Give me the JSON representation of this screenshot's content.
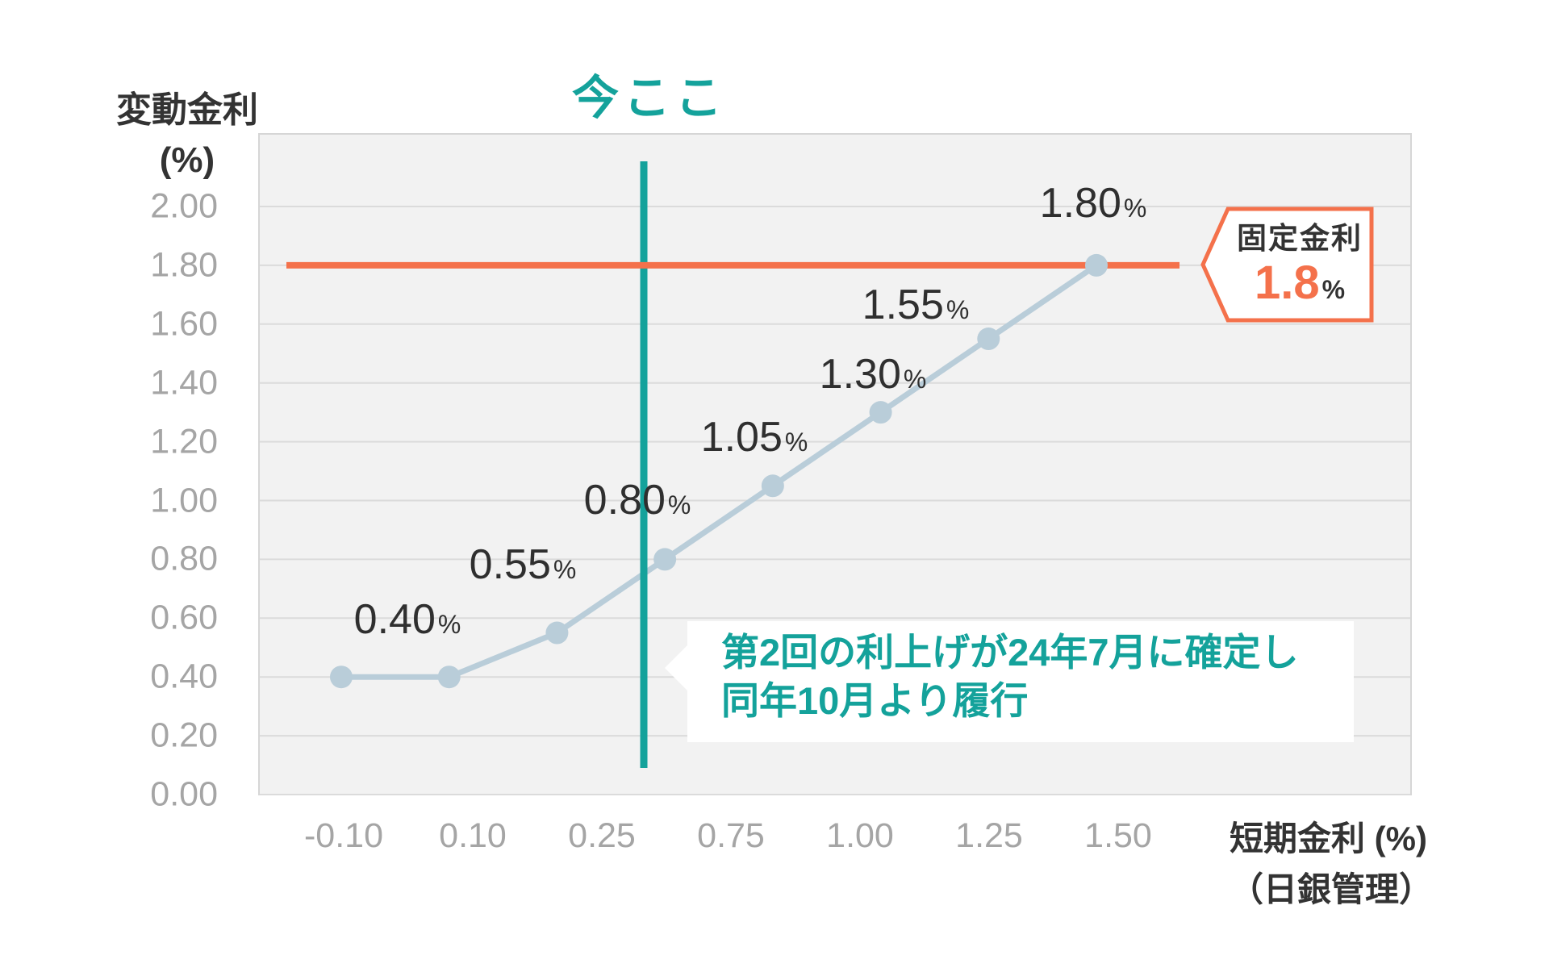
{
  "title": "今ここ",
  "y_axis": {
    "title_line1": "変動金利",
    "title_line2": "(%)",
    "ticks": [
      "2.00",
      "1.80",
      "1.60",
      "1.40",
      "1.20",
      "1.00",
      "0.80",
      "0.60",
      "0.40",
      "0.20",
      "0.00"
    ]
  },
  "x_axis": {
    "title_line1": "短期金利 (%)",
    "title_line2": "（日銀管理）",
    "ticks": [
      "-0.10",
      "0.10",
      "0.25",
      "0.75",
      "1.00",
      "1.25",
      "1.50"
    ]
  },
  "chart_data": {
    "type": "line",
    "title": "今ここ",
    "ylabel": "変動金利 (%)",
    "xlabel": "短期金利 (%)（日銀管理）",
    "x_tick_labels": [
      "-0.10",
      "0.10",
      "0.25",
      "0.75",
      "1.00",
      "1.25",
      "1.50"
    ],
    "y_tick_labels": [
      "2.00",
      "1.80",
      "1.60",
      "1.40",
      "1.20",
      "1.00",
      "0.80",
      "0.60",
      "0.40",
      "0.20",
      "0.00"
    ],
    "ylim": [
      0,
      2.25
    ],
    "grid": "horizontal",
    "legend": "none",
    "series": [
      {
        "name": "変動金利",
        "values": [
          0.4,
          0.4,
          0.55,
          0.8,
          1.05,
          1.3,
          1.55,
          1.8
        ]
      }
    ],
    "point_labels": [
      "0.40",
      "0.55",
      "0.80",
      "1.05",
      "1.30",
      "1.55",
      "1.80"
    ],
    "unit": "%",
    "reference_line": {
      "value": 1.8,
      "label": "固定金利",
      "display_value": "1.8",
      "unit": "%"
    },
    "vertical_marker": {
      "label": "今ここ",
      "between_ticks": [
        "0.25",
        "0.75"
      ]
    }
  },
  "badge": {
    "label": "固定金利",
    "value": "1.8",
    "unit": "%"
  },
  "callout": {
    "line1": "第2回の利上げが24年7月に確定し",
    "line2": "同年10月より履行"
  },
  "colors": {
    "teal": "#14A29B",
    "orange": "#F4714B",
    "series_line": "#B9CDD9",
    "grid_line": "#DBDBDB",
    "plot_bg": "#F2F2F2",
    "tick_text": "#A5A5A5",
    "dark_text": "#333333"
  }
}
